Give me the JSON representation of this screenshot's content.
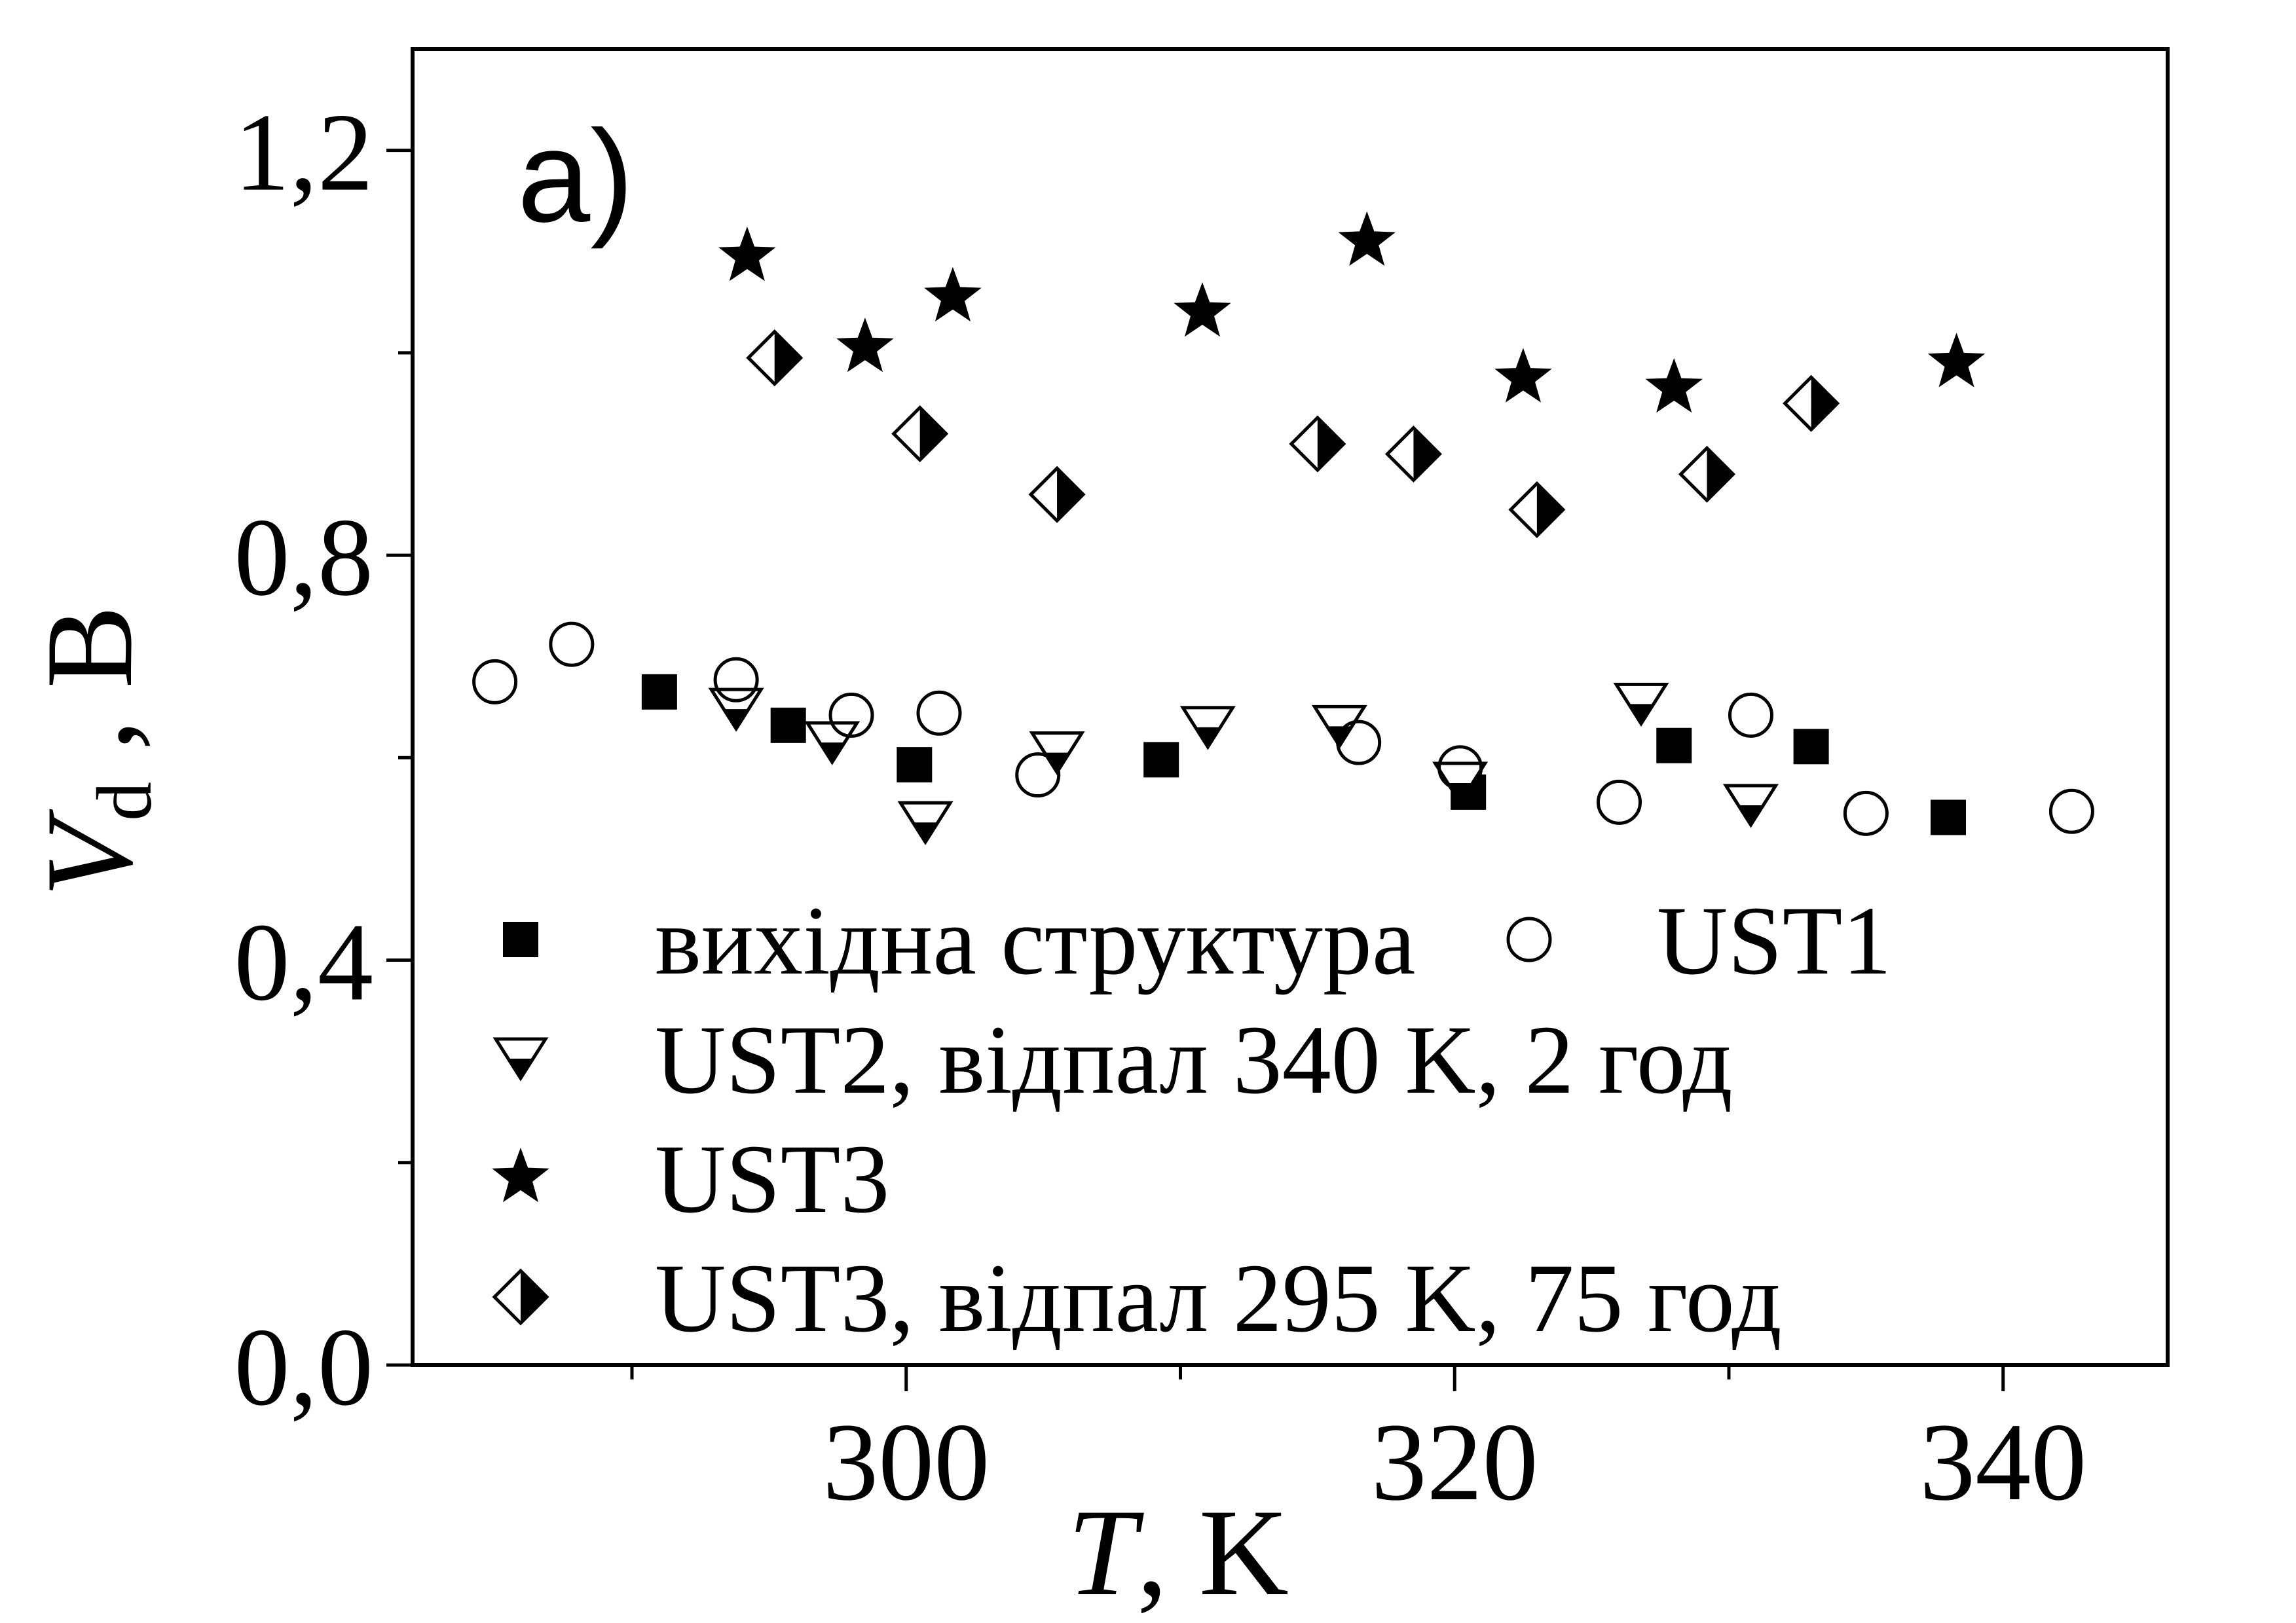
{
  "chart_data": {
    "type": "scatter",
    "panel_label": "a)",
    "xlabel": "T",
    "xlabel_unit": ", K",
    "ylabel": "V",
    "ylabel_sub": "d",
    "ylabel_unit": " ,  В",
    "xlim": [
      282,
      346
    ],
    "ylim": [
      0,
      1.3
    ],
    "x_ticks": [
      300,
      320,
      340
    ],
    "x_tick_labels": [
      "300",
      "320",
      "340"
    ],
    "y_ticks": [
      0,
      0.4,
      0.8,
      1.2
    ],
    "y_tick_labels": [
      "0,0",
      "0,4",
      "0,8",
      "1,2"
    ],
    "grid": false,
    "legend_position": "lower-left",
    "series": [
      {
        "name": "вихідна структура",
        "marker": "filled-square",
        "points": [
          [
            291.0,
            0.665
          ],
          [
            295.7,
            0.632
          ],
          [
            300.3,
            0.593
          ],
          [
            309.3,
            0.598
          ],
          [
            320.5,
            0.566
          ],
          [
            328.0,
            0.612
          ],
          [
            333.0,
            0.611
          ],
          [
            338.0,
            0.541
          ]
        ]
      },
      {
        "name": "UST1",
        "marker": "open-circle",
        "points": [
          [
            285.0,
            0.675
          ],
          [
            287.8,
            0.712
          ],
          [
            293.8,
            0.677
          ],
          [
            298.0,
            0.642
          ],
          [
            301.2,
            0.644
          ],
          [
            304.8,
            0.583
          ],
          [
            316.5,
            0.615
          ],
          [
            320.2,
            0.59
          ],
          [
            326.0,
            0.556
          ],
          [
            330.8,
            0.642
          ],
          [
            335.0,
            0.545
          ],
          [
            342.5,
            0.547
          ]
        ]
      },
      {
        "name": "UST2, відпал 340 K, 2 год",
        "marker": "half-triangle",
        "points": [
          [
            293.8,
            0.648
          ],
          [
            297.3,
            0.615
          ],
          [
            300.7,
            0.536
          ],
          [
            305.5,
            0.605
          ],
          [
            311.0,
            0.63
          ],
          [
            315.8,
            0.631
          ],
          [
            320.2,
            0.575
          ],
          [
            326.8,
            0.653
          ],
          [
            330.8,
            0.553
          ]
        ]
      },
      {
        "name": "UST3",
        "marker": "filled-star",
        "points": [
          [
            294.2,
            1.095
          ],
          [
            298.5,
            1.005
          ],
          [
            301.7,
            1.055
          ],
          [
            310.8,
            1.04
          ],
          [
            316.8,
            1.11
          ],
          [
            322.5,
            0.975
          ],
          [
            328.0,
            0.965
          ],
          [
            338.3,
            0.99
          ]
        ]
      },
      {
        "name": "UST3, відпал 295 K, 75 год",
        "marker": "half-diamond",
        "points": [
          [
            295.2,
            0.995
          ],
          [
            300.5,
            0.92
          ],
          [
            305.5,
            0.86
          ],
          [
            315.0,
            0.91
          ],
          [
            318.5,
            0.9
          ],
          [
            323.0,
            0.845
          ],
          [
            329.2,
            0.88
          ],
          [
            333.0,
            0.95
          ]
        ]
      }
    ]
  }
}
